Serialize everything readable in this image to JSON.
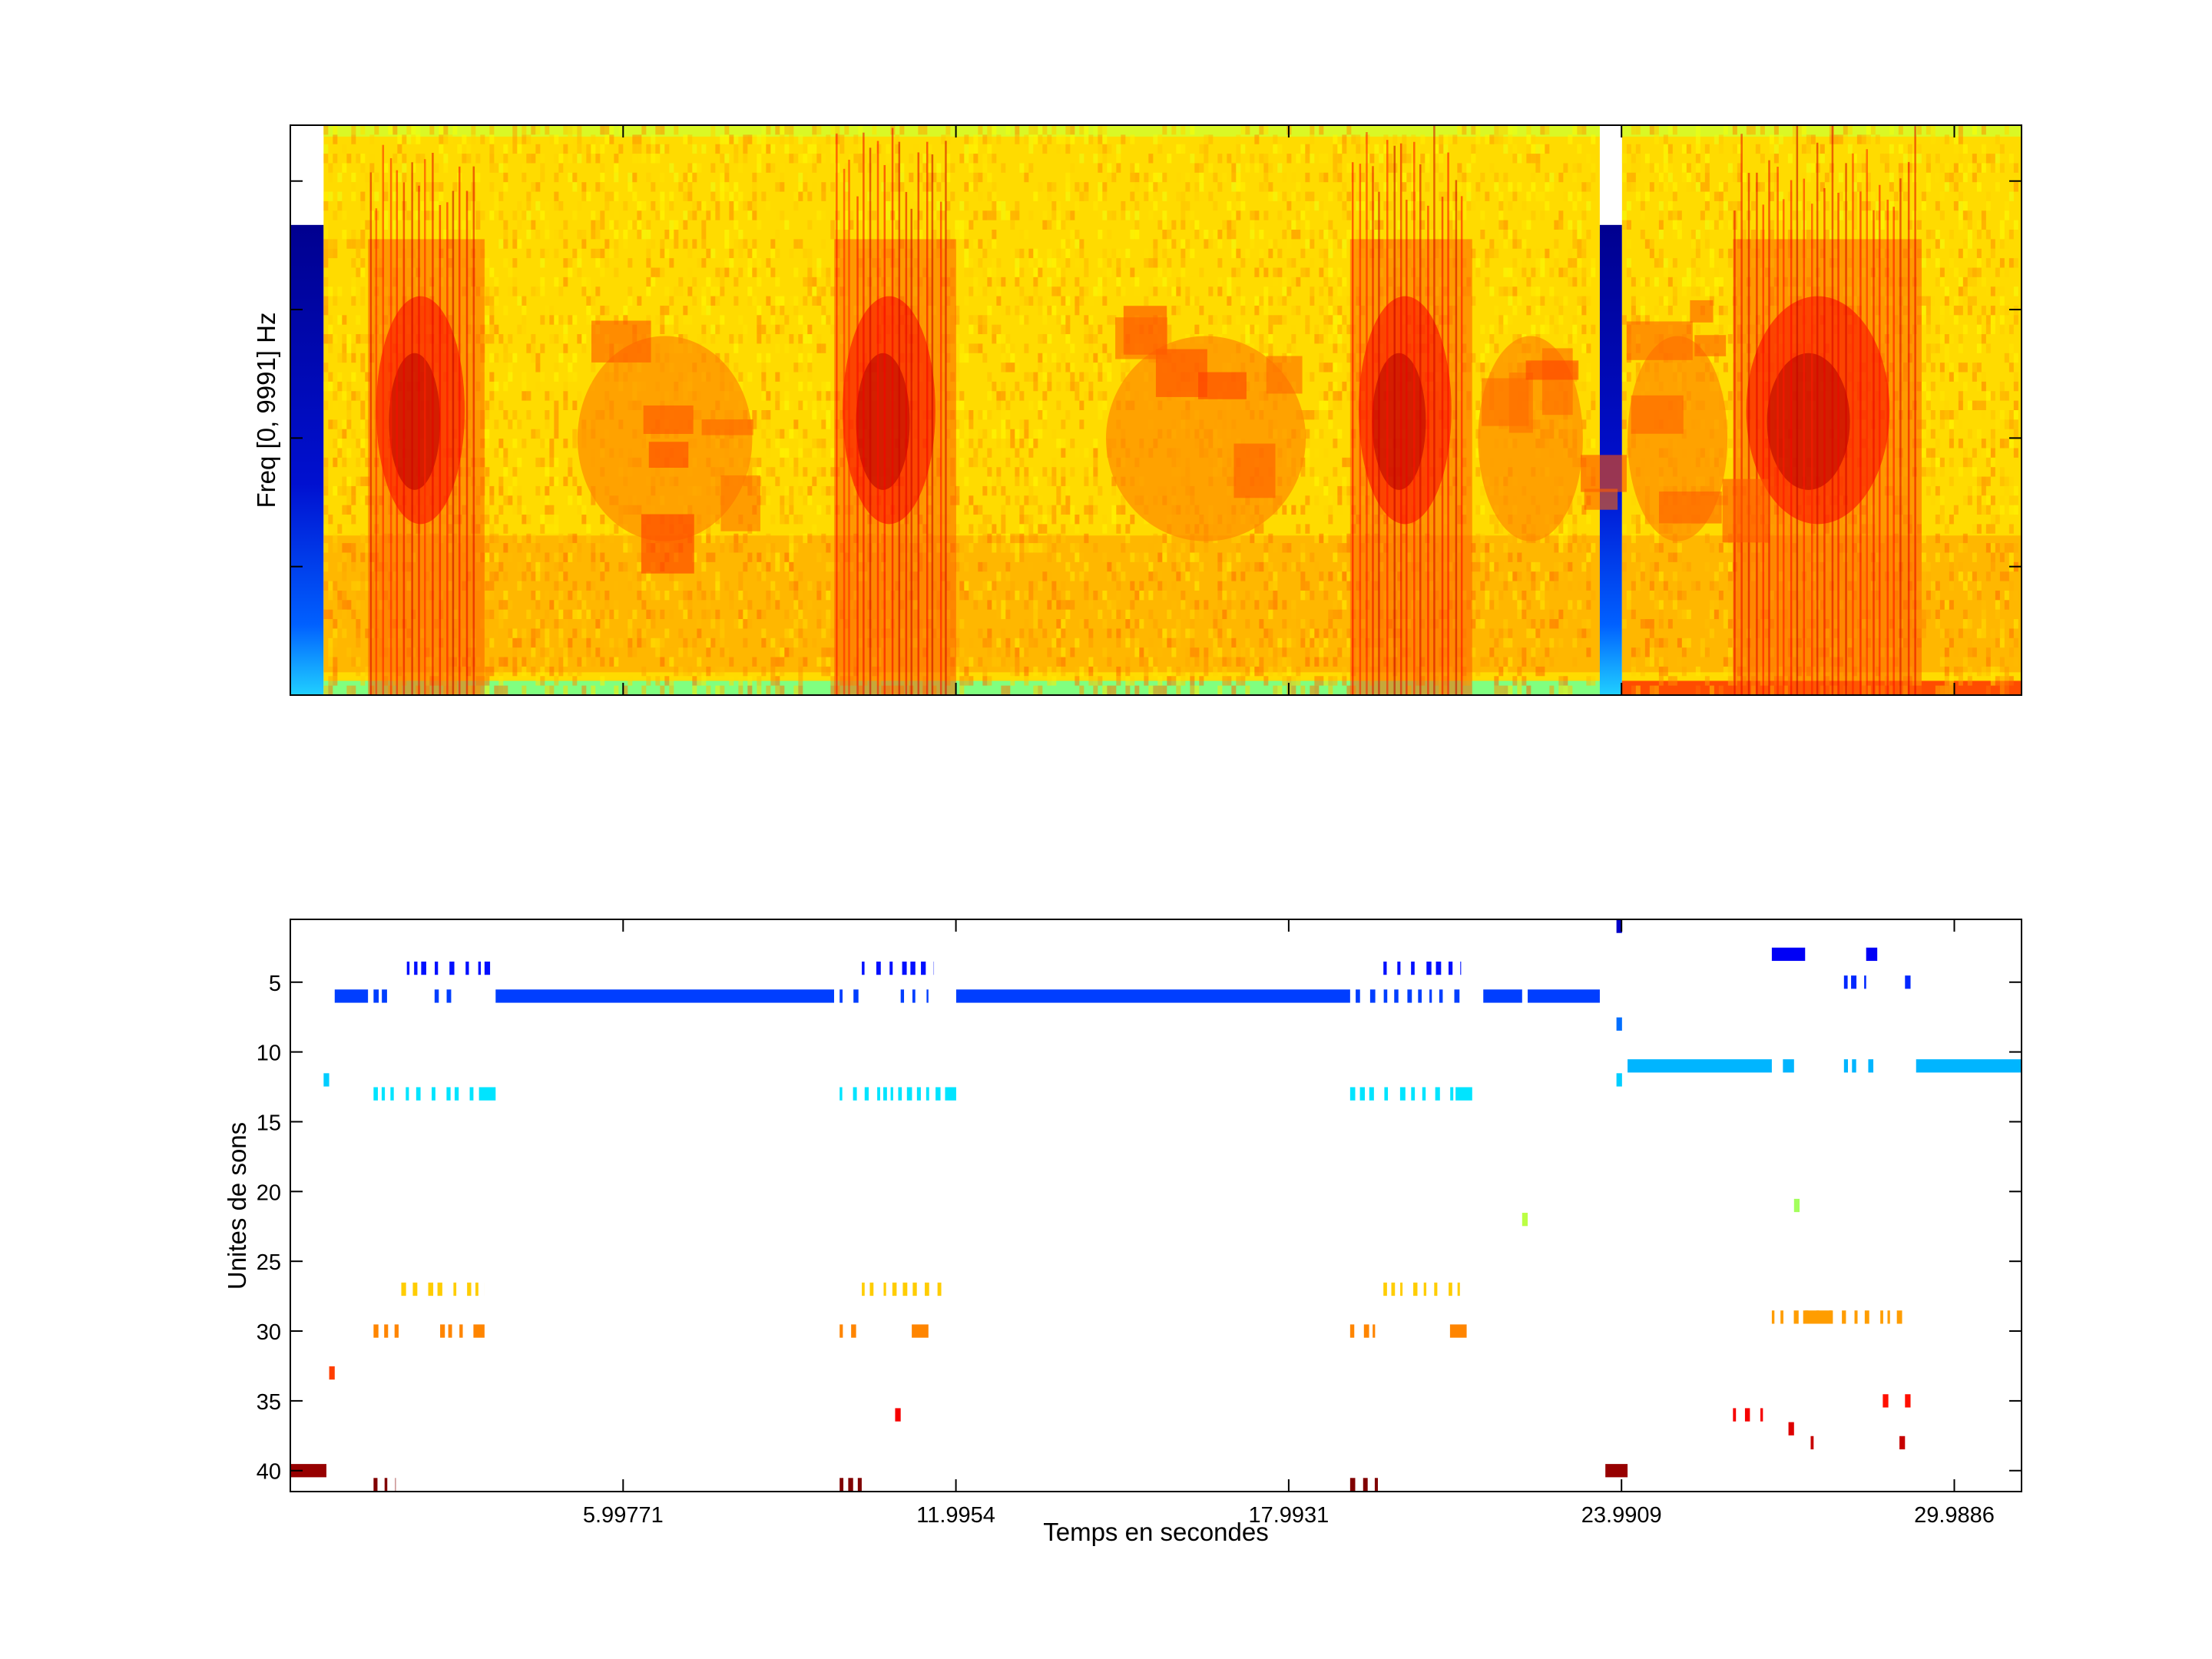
{
  "chart_data": [
    {
      "type": "heatmap",
      "title": "",
      "xlabel": "",
      "ylabel": "Freq [0, 9991] Hz",
      "xlim": [
        0,
        31.2
      ],
      "ylim": [
        0,
        9991
      ],
      "colormap": "jet",
      "ticks_labeled": false,
      "segments": [
        {
          "start": 0.0,
          "end": 0.6,
          "kind": "padding"
        },
        {
          "start": 0.6,
          "end": 23.6,
          "kind": "signal"
        },
        {
          "start": 23.6,
          "end": 24.0,
          "kind": "padding"
        },
        {
          "start": 24.0,
          "end": 31.2,
          "kind": "signal"
        }
      ],
      "energy_bursts": [
        {
          "start": 1.4,
          "end": 3.5,
          "level": 0.9
        },
        {
          "start": 9.8,
          "end": 12.0,
          "level": 0.9
        },
        {
          "start": 19.1,
          "end": 21.3,
          "level": 0.9
        },
        {
          "start": 26.0,
          "end": 29.4,
          "level": 0.95
        },
        {
          "start": 5.0,
          "end": 8.5,
          "level": 0.55
        },
        {
          "start": 14.5,
          "end": 18.5,
          "level": 0.55
        },
        {
          "start": 21.3,
          "end": 23.4,
          "level": 0.5
        },
        {
          "start": 24.0,
          "end": 26.0,
          "level": 0.5
        }
      ]
    },
    {
      "type": "scatter",
      "title": "",
      "xlabel": "Temps en secondes",
      "ylabel": "Unites de sons",
      "xlim": [
        0,
        31.2
      ],
      "ylim": [
        41.5,
        0.5
      ],
      "y_reversed": true,
      "xticks": [
        5.99771,
        11.9954,
        17.9931,
        23.9909,
        29.9886
      ],
      "xtick_labels": [
        "5.99771",
        "11.9954",
        "17.9931",
        "23.9909",
        "29.9886"
      ],
      "yticks": [
        5,
        10,
        15,
        20,
        25,
        30,
        35,
        40
      ],
      "ytick_labels": [
        "5",
        "10",
        "15",
        "20",
        "25",
        "30",
        "35",
        "40"
      ],
      "grid": false,
      "colormap": "jet",
      "color_range": [
        1,
        41
      ],
      "segments": [
        {
          "unit": 1,
          "start": 23.9,
          "end": 24.0
        },
        {
          "unit": 4,
          "start": 2.1,
          "end": 3.5,
          "pattern": "dashed"
        },
        {
          "unit": 4,
          "start": 3.5,
          "end": 3.6
        },
        {
          "unit": 4,
          "start": 10.3,
          "end": 11.6,
          "pattern": "dashed"
        },
        {
          "unit": 4,
          "start": 19.7,
          "end": 21.1,
          "pattern": "dashed"
        },
        {
          "unit": 3,
          "start": 26.7,
          "end": 27.3
        },
        {
          "unit": 3,
          "start": 28.4,
          "end": 28.6
        },
        {
          "unit": 5,
          "start": 28.0,
          "end": 28.4,
          "pattern": "dashed"
        },
        {
          "unit": 5,
          "start": 29.1,
          "end": 29.2
        },
        {
          "unit": 6,
          "start": 0.8,
          "end": 1.4
        },
        {
          "unit": 6,
          "start": 1.5,
          "end": 1.9,
          "pattern": "dashed"
        },
        {
          "unit": 6,
          "start": 2.6,
          "end": 3.0,
          "pattern": "dashed"
        },
        {
          "unit": 6,
          "start": 3.7,
          "end": 9.8
        },
        {
          "unit": 6,
          "start": 9.9,
          "end": 10.3,
          "pattern": "dashed"
        },
        {
          "unit": 6,
          "start": 11.0,
          "end": 11.5,
          "pattern": "dashed"
        },
        {
          "unit": 6,
          "start": 12.0,
          "end": 19.1
        },
        {
          "unit": 6,
          "start": 19.2,
          "end": 21.1,
          "pattern": "dashed"
        },
        {
          "unit": 6,
          "start": 21.5,
          "end": 22.2
        },
        {
          "unit": 6,
          "start": 22.3,
          "end": 23.6
        },
        {
          "unit": 8,
          "start": 23.9,
          "end": 24.0
        },
        {
          "unit": 11,
          "start": 24.1,
          "end": 26.7
        },
        {
          "unit": 11,
          "start": 26.9,
          "end": 27.1
        },
        {
          "unit": 11,
          "start": 28.0,
          "end": 28.6,
          "pattern": "dashed"
        },
        {
          "unit": 11,
          "start": 29.3,
          "end": 31.2
        },
        {
          "unit": 12,
          "start": 0.6,
          "end": 0.7
        },
        {
          "unit": 12,
          "start": 23.9,
          "end": 24.0
        },
        {
          "unit": 13,
          "start": 1.5,
          "end": 3.3,
          "pattern": "dashed"
        },
        {
          "unit": 13,
          "start": 3.4,
          "end": 3.7
        },
        {
          "unit": 13,
          "start": 9.9,
          "end": 11.8,
          "pattern": "dashed"
        },
        {
          "unit": 13,
          "start": 11.8,
          "end": 12.0
        },
        {
          "unit": 13,
          "start": 19.1,
          "end": 21.0,
          "pattern": "dashed"
        },
        {
          "unit": 13,
          "start": 21.0,
          "end": 21.3
        },
        {
          "unit": 21,
          "start": 27.1,
          "end": 27.2
        },
        {
          "unit": 22,
          "start": 22.2,
          "end": 22.3
        },
        {
          "unit": 27,
          "start": 2.0,
          "end": 3.5,
          "pattern": "dashed"
        },
        {
          "unit": 27,
          "start": 10.3,
          "end": 11.8,
          "pattern": "dashed"
        },
        {
          "unit": 27,
          "start": 19.7,
          "end": 21.2,
          "pattern": "dashed"
        },
        {
          "unit": 29,
          "start": 27.3,
          "end": 27.8
        },
        {
          "unit": 29,
          "start": 26.7,
          "end": 29.2,
          "pattern": "dashed"
        },
        {
          "unit": 30,
          "start": 1.5,
          "end": 2.0,
          "pattern": "dashed"
        },
        {
          "unit": 30,
          "start": 2.7,
          "end": 3.2,
          "pattern": "dashed"
        },
        {
          "unit": 30,
          "start": 3.3,
          "end": 3.5
        },
        {
          "unit": 30,
          "start": 9.9,
          "end": 10.3,
          "pattern": "dashed"
        },
        {
          "unit": 30,
          "start": 11.2,
          "end": 11.5
        },
        {
          "unit": 30,
          "start": 19.1,
          "end": 19.6,
          "pattern": "dashed"
        },
        {
          "unit": 30,
          "start": 20.9,
          "end": 21.2
        },
        {
          "unit": 33,
          "start": 0.7,
          "end": 0.8
        },
        {
          "unit": 35,
          "start": 28.7,
          "end": 28.8
        },
        {
          "unit": 35,
          "start": 29.1,
          "end": 29.2
        },
        {
          "unit": 36,
          "start": 10.9,
          "end": 11.0
        },
        {
          "unit": 36,
          "start": 26.0,
          "end": 26.6,
          "pattern": "dashed"
        },
        {
          "unit": 37,
          "start": 27.0,
          "end": 27.1
        },
        {
          "unit": 38,
          "start": 27.4,
          "end": 27.6,
          "pattern": "dashed"
        },
        {
          "unit": 38,
          "start": 29.0,
          "end": 29.1
        },
        {
          "unit": 40,
          "start": 0.0,
          "end": 0.65
        },
        {
          "unit": 40,
          "start": 23.7,
          "end": 24.1
        },
        {
          "unit": 41,
          "start": 1.5,
          "end": 1.9,
          "pattern": "dashed"
        },
        {
          "unit": 41,
          "start": 9.9,
          "end": 10.3,
          "pattern": "dashed"
        },
        {
          "unit": 41,
          "start": 19.1,
          "end": 19.6,
          "pattern": "dashed"
        }
      ]
    }
  ]
}
